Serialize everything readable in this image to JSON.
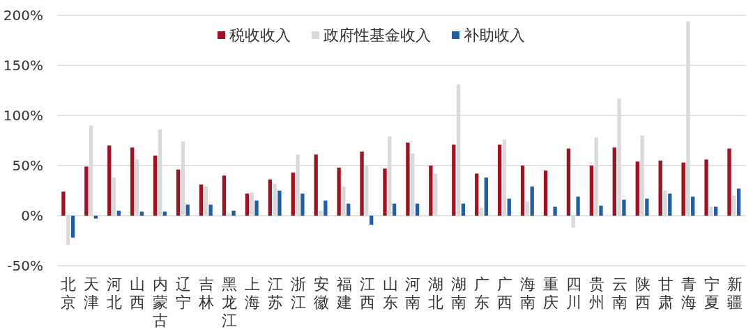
{
  "chart_data": {
    "type": "bar",
    "categories": [
      "北京",
      "天津",
      "河北",
      "山西",
      "内蒙古",
      "辽宁",
      "吉林",
      "黑龙江",
      "上海",
      "江苏",
      "浙江",
      "安徽",
      "福建",
      "江西",
      "山东",
      "河南",
      "湖北",
      "湖南",
      "广东",
      "广西",
      "海南",
      "重庆",
      "四川",
      "贵州",
      "云南",
      "陕西",
      "甘肃",
      "青海",
      "宁夏",
      "新疆"
    ],
    "series": [
      {
        "name": "税收收入",
        "color": "#a50f22",
        "values": [
          24,
          49,
          70,
          68,
          60,
          46,
          31,
          40,
          22,
          36,
          43,
          61,
          48,
          64,
          47,
          73,
          50,
          71,
          42,
          71,
          50,
          45,
          67,
          50,
          68,
          54,
          55,
          53,
          56,
          67
        ]
      },
      {
        "name": "政府性基金收入",
        "color": "#d9d9d9",
        "values": [
          -29,
          90,
          38,
          56,
          86,
          74,
          29,
          2,
          23,
          32,
          61,
          5,
          29,
          50,
          79,
          62,
          42,
          131,
          8,
          76,
          14,
          0,
          -12,
          78,
          117,
          80,
          25,
          194,
          9,
          20
        ]
      },
      {
        "name": "补助收入",
        "color": "#1f5fa8",
        "values": [
          -22,
          -3,
          5,
          4,
          4,
          11,
          11,
          5,
          15,
          25,
          22,
          15,
          12,
          -9,
          12,
          12,
          0,
          12,
          38,
          17,
          29,
          9,
          19,
          10,
          16,
          17,
          22,
          19,
          9,
          27
        ]
      }
    ],
    "ylim": [
      -50,
      200
    ],
    "yticks": [
      {
        "value": -50,
        "label": "-50%"
      },
      {
        "value": 0,
        "label": "0%"
      },
      {
        "value": 50,
        "label": "50%"
      },
      {
        "value": 100,
        "label": "100%"
      },
      {
        "value": 150,
        "label": "150%"
      },
      {
        "value": 200,
        "label": "200%"
      }
    ],
    "grid": "y",
    "legend": "top"
  }
}
